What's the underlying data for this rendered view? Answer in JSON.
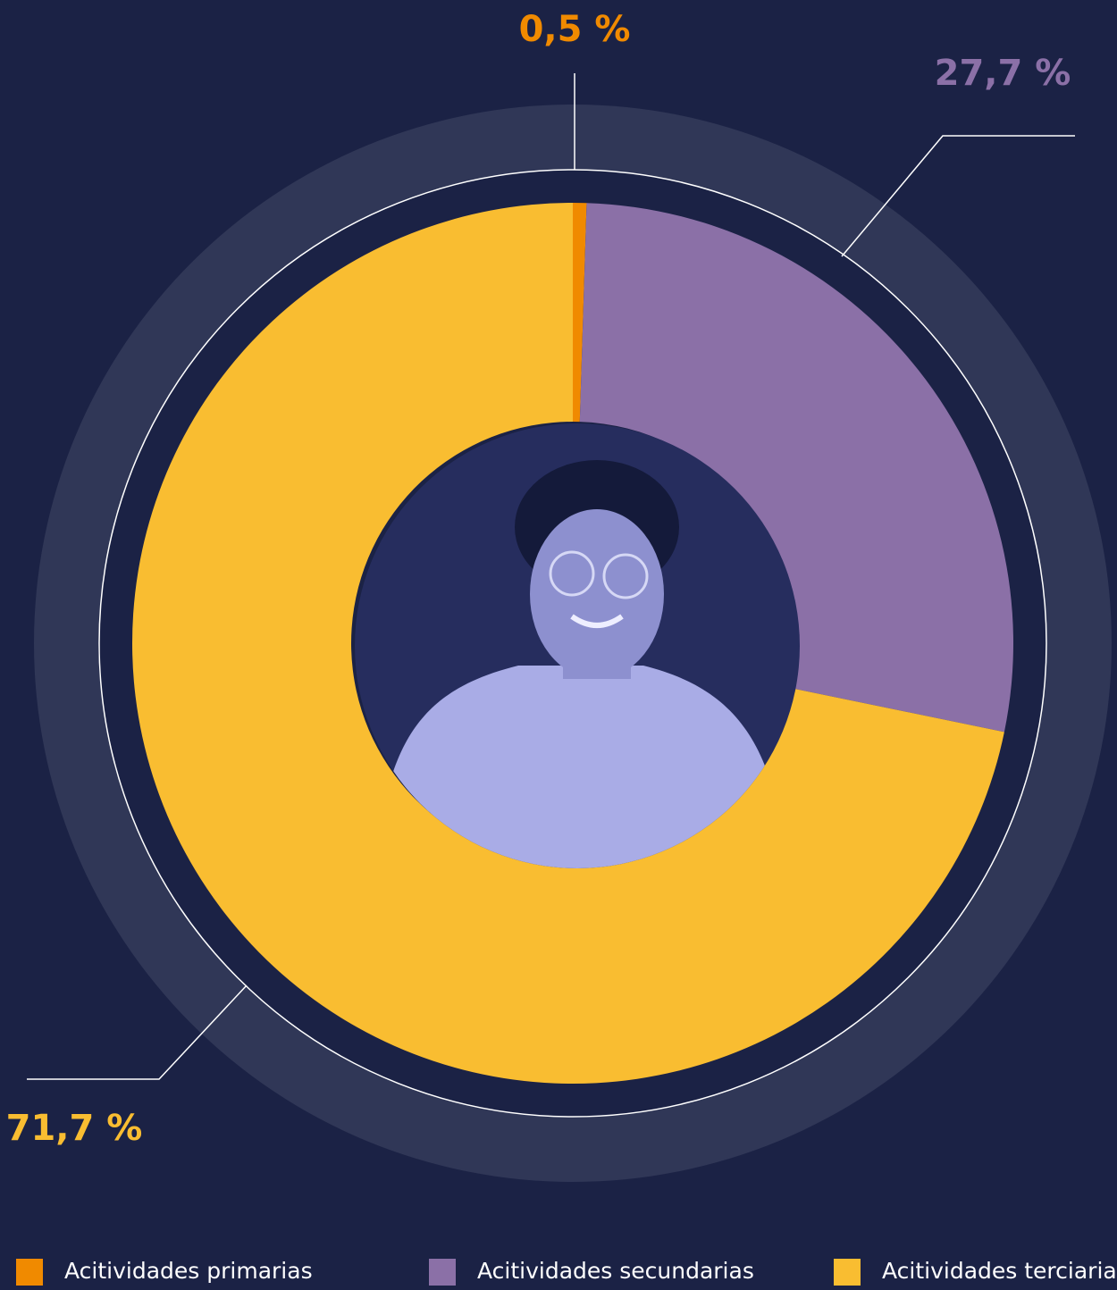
{
  "chart_data": {
    "type": "pie",
    "categories": [
      "Acitividades primarias",
      "Acitividades secundarias",
      "Acitividades terciarias"
    ],
    "values": [
      0.5,
      27.7,
      71.7
    ],
    "value_labels": [
      "0,5 %",
      "27,7 %",
      "71,7 %"
    ],
    "colors": [
      "#f08a00",
      "#8b70a7",
      "#f9bd31"
    ],
    "legend": "bottom"
  }
}
